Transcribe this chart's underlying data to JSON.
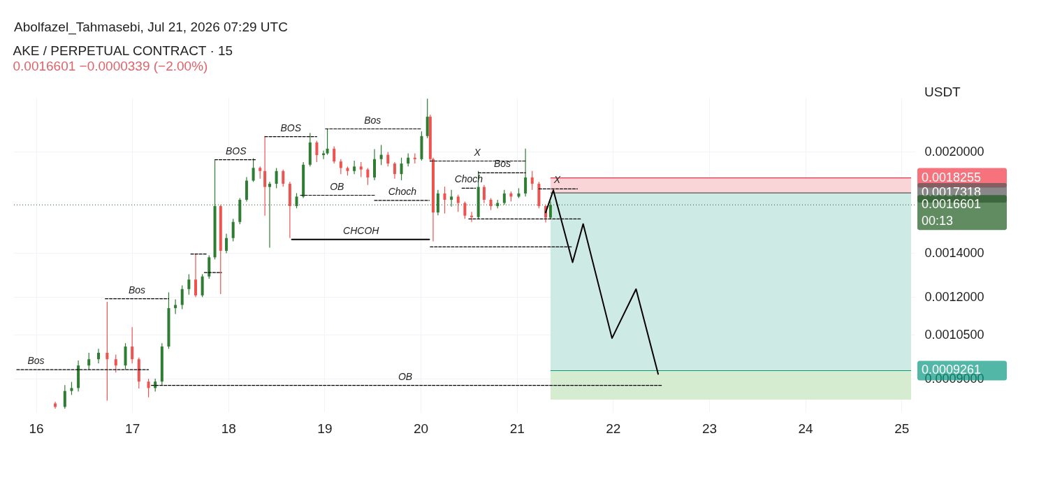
{
  "chart_data": {
    "type": "candlestick",
    "title": "AKE / PERPETUAL CONTRACT · 15",
    "subtitle": "0.0016601  −0.0000339 (−2.00%)",
    "ylabel": "USDT",
    "annotations": [
      "Abolfazel_Tahmasebi, Jul 21, 2026 07:29 UTC",
      {
        "text": "Bos",
        "x": 16.0,
        "y": 0.000929
      },
      {
        "text": "Bos",
        "x": 17.05,
        "y": 0.001193
      },
      {
        "text": "BOS",
        "x": 18.08,
        "y": 0.001946
      },
      {
        "text": "BOS",
        "x": 18.65,
        "y": 0.002111
      },
      {
        "text": "Bos",
        "x": 19.5,
        "y": 0.002169
      },
      {
        "text": "OB",
        "x": 19.13,
        "y": 0.001717
      },
      {
        "text": "Choch",
        "x": 19.81,
        "y": 0.001686
      },
      {
        "text": "CHCOH",
        "x": 19.38,
        "y": 0.00147
      },
      {
        "text": "X",
        "x": 20.59,
        "y": 0.001937
      },
      {
        "text": "Bos",
        "x": 20.85,
        "y": 0.001858
      },
      {
        "text": "Choch",
        "x": 20.5,
        "y": 0.00176
      },
      {
        "text": "X",
        "x": 21.42,
        "y": 0.001756
      },
      {
        "text": "OB",
        "x": 19.84,
        "y": 0.000879
      }
    ],
    "xlim": [
      15.8,
      25.1
    ],
    "xticks": [
      16,
      17,
      18,
      19,
      20,
      21,
      22,
      23,
      24,
      25
    ],
    "ylim": [
      0.0008,
      0.00242
    ],
    "log": true,
    "yticks": [
      {
        "value": 0.0009,
        "label": "0.0009000"
      },
      {
        "value": 0.00105,
        "label": "0.0010500"
      },
      {
        "value": 0.0012,
        "label": "0.0012000"
      },
      {
        "value": 0.0014,
        "label": "0.0014000"
      },
      {
        "value": 0.002,
        "label": "0.0020000"
      }
    ],
    "grid": true,
    "ref_lines": [
      {
        "axis": "y",
        "value": 0.0018255,
        "label": "0.0018255",
        "color": "#f23645",
        "line_style": "solid"
      },
      {
        "axis": "y",
        "value": 0.0017318,
        "label": "0.0017318",
        "color": "#555555",
        "line_style": "solid"
      },
      {
        "axis": "y",
        "value": 0.0016601,
        "label": "0.0016601\n00:13",
        "color": "#1e5a1e",
        "line_style": "dotted"
      },
      {
        "axis": "y",
        "value": 0.0009261,
        "label": "0.0009261",
        "color": "#089981",
        "line_style": "solid"
      }
    ],
    "bands": [
      {
        "axis": "y",
        "from": 0.0017318,
        "to": 0.0018255,
        "color": "#f9d5d8"
      },
      {
        "axis": "y",
        "from": 0.0009261,
        "to": 0.0017318,
        "color": "#cdeae4"
      },
      {
        "axis": "y",
        "from": 0.000836,
        "to": 0.000926,
        "color": "#d5ecd1"
      }
    ],
    "series": [
      {
        "x": [
          16.2,
          16.3,
          16.37,
          16.44,
          16.55,
          16.65,
          16.74,
          16.83,
          16.93,
          17.0,
          17.07,
          17.17,
          17.24,
          17.31,
          17.38,
          17.45,
          17.52,
          17.59,
          17.66,
          17.73,
          17.8,
          17.86,
          17.92,
          17.98,
          18.05,
          18.12,
          18.19,
          18.26,
          18.33,
          18.38,
          18.43,
          18.5,
          18.57,
          18.64,
          18.71,
          18.78,
          18.85,
          18.92,
          18.99,
          19.03,
          19.1,
          19.17,
          19.24,
          19.31,
          19.38,
          19.45,
          19.52,
          19.59,
          19.66,
          19.73,
          19.8,
          19.87,
          19.94,
          20.01,
          20.07,
          20.1,
          20.13,
          20.18,
          20.25,
          20.32,
          20.39,
          20.46,
          20.53,
          20.6,
          20.66,
          20.73,
          20.8,
          20.87,
          20.94,
          21.02,
          21.09,
          21.16,
          21.23,
          21.3,
          21.35
        ],
        "ohlc": [
          [
            0.000825,
            0.00083,
            0.00081,
            0.000815
          ],
          [
            0.000815,
            0.00088,
            0.00081,
            0.000862
          ],
          [
            0.000862,
            0.00089,
            0.00085,
            0.000871
          ],
          [
            0.000871,
            0.00096,
            0.00086,
            0.000943
          ],
          [
            0.000943,
            0.000986,
            0.00093,
            0.000964
          ],
          [
            0.000964,
            0.001,
            0.00095,
            0.000986
          ],
          [
            0.000986,
            0.00118,
            0.000833,
            0.000964
          ],
          [
            0.000964,
            0.00098,
            0.00092,
            0.000943
          ],
          [
            0.000943,
            0.00102,
            0.00093,
            0.001008
          ],
          [
            0.001008,
            0.001079,
            0.00095,
            0.000964
          ],
          [
            0.000964,
            0.00097,
            0.00087,
            0.000891
          ],
          [
            0.000891,
            0.0009,
            0.000843,
            0.000871
          ],
          [
            0.000871,
            0.0009,
            0.00086,
            0.000891
          ],
          [
            0.000891,
            0.00102,
            0.00088,
            0.001008
          ],
          [
            0.001008,
            0.00122,
            0.001,
            0.001154
          ],
          [
            0.001154,
            0.00119,
            0.00113,
            0.001167
          ],
          [
            0.001167,
            0.00125,
            0.00115,
            0.001234
          ],
          [
            0.001234,
            0.0013,
            0.00121,
            0.001276
          ],
          [
            0.001276,
            0.001396,
            0.0012,
            0.001207
          ],
          [
            0.001207,
            0.0013,
            0.0012,
            0.00129
          ],
          [
            0.00129,
            0.00139,
            0.00128,
            0.00138
          ],
          [
            0.00138,
            0.001943,
            0.00137,
            0.001653
          ],
          [
            0.001653,
            0.00166,
            0.001212,
            0.001412
          ],
          [
            0.001412,
            0.0015,
            0.0014,
            0.001477
          ],
          [
            0.001477,
            0.00158,
            0.00146,
            0.001563
          ],
          [
            0.001563,
            0.0017,
            0.00155,
            0.00169
          ],
          [
            0.00169,
            0.00183,
            0.00168,
            0.001808
          ],
          [
            0.001808,
            0.001956,
            0.0018,
            0.001891
          ],
          [
            0.001891,
            0.0019,
            0.00182,
            0.00187
          ],
          [
            0.00187,
            0.002115,
            0.001598,
            0.001768
          ],
          [
            0.001768,
            0.0018,
            0.001428,
            0.001788
          ],
          [
            0.001788,
            0.00189,
            0.00176,
            0.00187
          ],
          [
            0.00187,
            0.00188,
            0.00177,
            0.001788
          ],
          [
            0.001788,
            0.0018,
            0.001477,
            0.001653
          ],
          [
            0.001653,
            0.00173,
            0.00164,
            0.001709
          ],
          [
            0.001709,
            0.00193,
            0.0017,
            0.001912
          ],
          [
            0.001912,
            0.002139,
            0.0019,
            0.002068
          ],
          [
            0.002068,
            0.00208,
            0.00193,
            0.001978
          ],
          [
            0.001978,
            0.00201,
            0.00195,
            0.00199
          ],
          [
            0.00199,
            0.002172,
            0.00198,
            0.002023
          ],
          [
            0.002023,
            0.00204,
            0.00192,
            0.001934
          ],
          [
            0.001934,
            0.00195,
            0.00185,
            0.00189
          ],
          [
            0.00189,
            0.0019,
            0.00184,
            0.00187
          ],
          [
            0.00187,
            0.00194,
            0.00185,
            0.0019
          ],
          [
            0.0019,
            0.00193,
            0.00183,
            0.00188
          ],
          [
            0.00188,
            0.00189,
            0.00178,
            0.001828
          ],
          [
            0.001828,
            0.00202,
            0.00181,
            0.00195
          ],
          [
            0.00195,
            0.00205,
            0.00191,
            0.00198
          ],
          [
            0.00198,
            0.002,
            0.0019,
            0.00192
          ],
          [
            0.00192,
            0.00193,
            0.00182,
            0.00185
          ],
          [
            0.00185,
            0.00196,
            0.00181,
            0.00192
          ],
          [
            0.00192,
            0.00199,
            0.0019,
            0.00196
          ],
          [
            0.00196,
            0.00199,
            0.00192,
            0.00195
          ],
          [
            0.00195,
            0.00215,
            0.00194,
            0.002115
          ],
          [
            0.002115,
            0.002412,
            0.0021,
            0.002264
          ],
          [
            0.002264,
            0.00228,
            0.00193,
            0.00195
          ],
          [
            0.00195,
            0.00196,
            0.00146,
            0.001616
          ],
          [
            0.001616,
            0.00175,
            0.0016,
            0.001728
          ],
          [
            0.001728,
            0.00177,
            0.00161,
            0.00169
          ],
          [
            0.00169,
            0.00175,
            0.00165,
            0.001709
          ],
          [
            0.001709,
            0.00172,
            0.00162,
            0.001671
          ],
          [
            0.001671,
            0.00168,
            0.00158,
            0.001598
          ],
          [
            0.001598,
            0.00162,
            0.001563,
            0.00159
          ],
          [
            0.00159,
            0.00187,
            0.00158,
            0.001768
          ],
          [
            0.001768,
            0.00178,
            0.00167,
            0.00169
          ],
          [
            0.00169,
            0.0017,
            0.00163,
            0.001653
          ],
          [
            0.001653,
            0.00169,
            0.00164,
            0.001671
          ],
          [
            0.001671,
            0.00175,
            0.00166,
            0.001728
          ],
          [
            0.001728,
            0.00174,
            0.00168,
            0.001709
          ],
          [
            0.001709,
            0.00176,
            0.0017,
            0.001728
          ],
          [
            0.001728,
            0.002023,
            0.00171,
            0.001828
          ],
          [
            0.001828,
            0.00187,
            0.00175,
            0.001788
          ],
          [
            0.001788,
            0.0018,
            0.00164,
            0.001653
          ],
          [
            0.001653,
            0.00166,
            0.00156,
            0.001587
          ],
          [
            0.001587,
            0.00168,
            0.00158,
            0.00166
          ]
        ],
        "colors": [
          "#ef5350",
          "#2e7d32",
          "#2e7d32",
          "#2e7d32",
          "#2e7d32",
          "#2e7d32",
          "#ef5350",
          "#ef5350",
          "#2e7d32",
          "#ef5350",
          "#ef5350",
          "#ef5350",
          "#2e7d32",
          "#2e7d32",
          "#2e7d32",
          "#2e7d32",
          "#2e7d32",
          "#2e7d32",
          "#ef5350",
          "#2e7d32",
          "#2e7d32",
          "#2e7d32",
          "#ef5350",
          "#2e7d32",
          "#2e7d32",
          "#2e7d32",
          "#2e7d32",
          "#2e7d32",
          "#ef5350",
          "#ef5350",
          "#2e7d32",
          "#2e7d32",
          "#ef5350",
          "#ef5350",
          "#2e7d32",
          "#2e7d32",
          "#2e7d32",
          "#ef5350",
          "#2e7d32",
          "#2e7d32",
          "#ef5350",
          "#ef5350",
          "#ef5350",
          "#2e7d32",
          "#ef5350",
          "#ef5350",
          "#2e7d32",
          "#2e7d32",
          "#ef5350",
          "#ef5350",
          "#2e7d32",
          "#2e7d32",
          "#ef5350",
          "#2e7d32",
          "#2e7d32",
          "#ef5350",
          "#ef5350",
          "#2e7d32",
          "#ef5350",
          "#2e7d32",
          "#ef5350",
          "#ef5350",
          "#ef5350",
          "#2e7d32",
          "#ef5350",
          "#ef5350",
          "#2e7d32",
          "#2e7d32",
          "#ef5350",
          "#2e7d32",
          "#2e7d32",
          "#ef5350",
          "#ef5350",
          "#ef5350",
          "#2e7d32"
        ]
      },
      {
        "type": "line",
        "color": "#000000",
        "line_style": "solid",
        "x": [
          21.3,
          21.38,
          21.58,
          21.69,
          21.99,
          22.24,
          22.47
        ],
        "values": [
          0.001616,
          0.001748,
          0.001356,
          0.001552,
          0.001038,
          0.001234,
          0.000915
        ]
      },
      {
        "type": "line",
        "color": "#000000",
        "line_style": "dashed",
        "x": [
          15.8,
          17.17
        ],
        "values": [
          0.000929,
          0.000929
        ]
      },
      {
        "type": "line",
        "color": "#000000",
        "line_style": "dashed",
        "x": [
          16.72,
          17.38
        ],
        "values": [
          0.001193,
          0.001193
        ]
      },
      {
        "type": "line",
        "color": "#000000",
        "line_style": "dashed",
        "x": [
          17.61,
          17.77
        ],
        "values": [
          0.001396,
          0.001396
        ]
      },
      {
        "type": "line",
        "color": "#000000",
        "line_style": "dashed",
        "x": [
          17.75,
          17.93
        ],
        "values": [
          0.001308,
          0.001308
        ]
      },
      {
        "type": "line",
        "color": "#000000",
        "line_style": "dashed",
        "x": [
          17.86,
          18.29
        ],
        "values": [
          0.001946,
          0.001946
        ]
      },
      {
        "type": "line",
        "color": "#000000",
        "line_style": "dashed",
        "x": [
          18.38,
          18.92
        ],
        "values": [
          0.002111,
          0.002111
        ]
      },
      {
        "type": "line",
        "color": "#000000",
        "line_style": "dashed",
        "x": [
          19.01,
          20.01
        ],
        "values": [
          0.002169,
          0.002169
        ]
      },
      {
        "type": "line",
        "color": "#000000",
        "line_style": "dashed",
        "x": [
          18.75,
          19.52
        ],
        "values": [
          0.001717,
          0.001717
        ]
      },
      {
        "type": "line",
        "color": "#000000",
        "line_style": "dashed",
        "x": [
          19.52,
          20.09
        ],
        "values": [
          0.001686,
          0.001686
        ]
      },
      {
        "type": "line",
        "color": "#000000",
        "line_style": "solid",
        "x": [
          18.66,
          20.09
        ],
        "values": [
          0.00147,
          0.00147
        ]
      },
      {
        "type": "line",
        "color": "#000000",
        "line_style": "dashed",
        "x": [
          20.1,
          21.58
        ],
        "values": [
          0.001432,
          0.001432
        ]
      },
      {
        "type": "line",
        "color": "#000000",
        "line_style": "dashed",
        "x": [
          20.1,
          21.09
        ],
        "values": [
          0.001937,
          0.001937
        ]
      },
      {
        "type": "line",
        "color": "#000000",
        "line_style": "dashed",
        "x": [
          20.6,
          21.09
        ],
        "values": [
          0.001858,
          0.001858
        ]
      },
      {
        "type": "line",
        "color": "#000000",
        "line_style": "dashed",
        "x": [
          20.43,
          20.57
        ],
        "values": [
          0.00176,
          0.00176
        ]
      },
      {
        "type": "line",
        "color": "#000000",
        "line_style": "dashed",
        "x": [
          20.5,
          21.67
        ],
        "values": [
          0.00158,
          0.00158
        ]
      },
      {
        "type": "line",
        "color": "#000000",
        "line_style": "dashed",
        "x": [
          21.23,
          21.63
        ],
        "values": [
          0.001756,
          0.001756
        ]
      },
      {
        "type": "line",
        "color": "#000000",
        "line_style": "dashed",
        "x": [
          17.2,
          22.51
        ],
        "values": [
          0.000879,
          0.000879
        ]
      }
    ]
  }
}
